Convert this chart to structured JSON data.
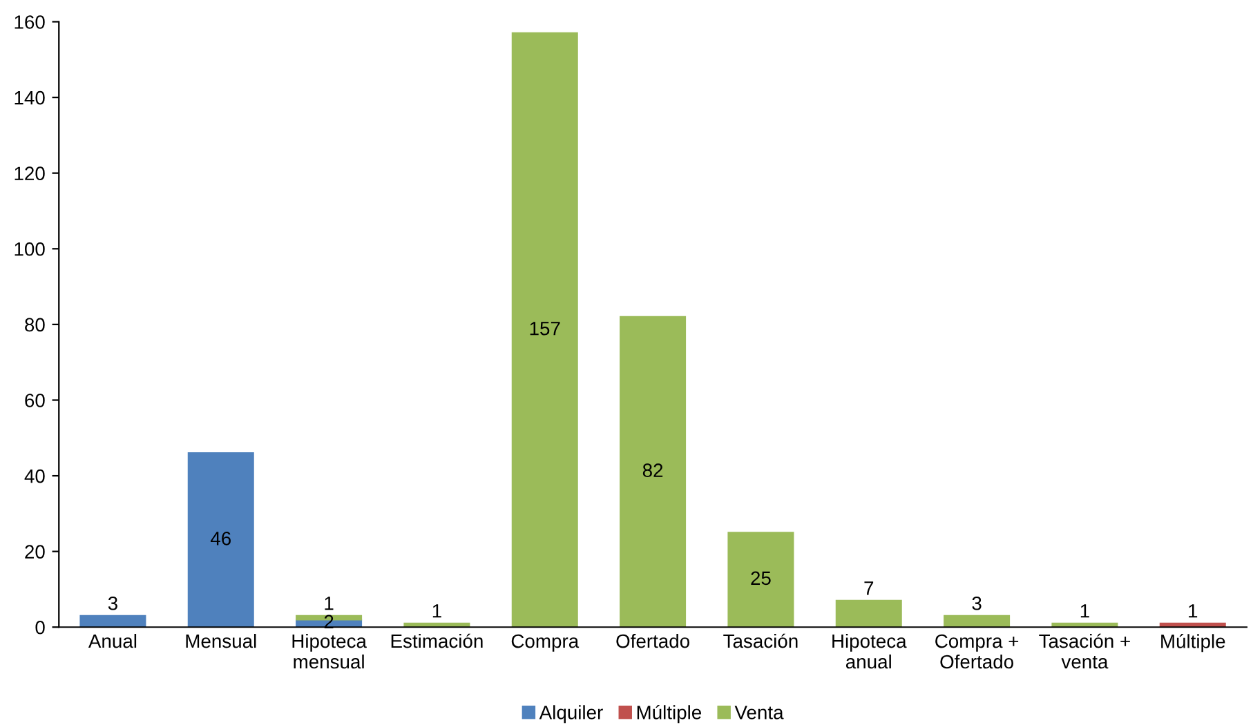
{
  "chart_data": {
    "type": "bar",
    "stacked": true,
    "data_labels": true,
    "legend": "bottom",
    "grid": false,
    "categories": [
      "Anual",
      "Mensual",
      "Hipoteca mensual",
      "Estimación",
      "Compra",
      "Ofertado",
      "Tasación",
      "Hipoteca anual",
      "Compra + Ofertado",
      "Tasación + venta",
      "Múltiple"
    ],
    "series": [
      {
        "name": "Alquiler",
        "color": "#4f81bd",
        "values": [
          3,
          46,
          2,
          null,
          null,
          null,
          null,
          null,
          null,
          null,
          null
        ]
      },
      {
        "name": "Múltiple",
        "color": "#c0504d",
        "values": [
          null,
          null,
          null,
          null,
          null,
          null,
          null,
          null,
          null,
          null,
          1
        ]
      },
      {
        "name": "Venta",
        "color": "#9bbb59",
        "values": [
          null,
          null,
          1,
          1,
          157,
          82,
          25,
          7,
          3,
          1,
          null
        ]
      }
    ],
    "ylim": [
      0,
      160
    ],
    "yticks": [
      0,
      20,
      40,
      60,
      80,
      100,
      120,
      140,
      160
    ]
  }
}
